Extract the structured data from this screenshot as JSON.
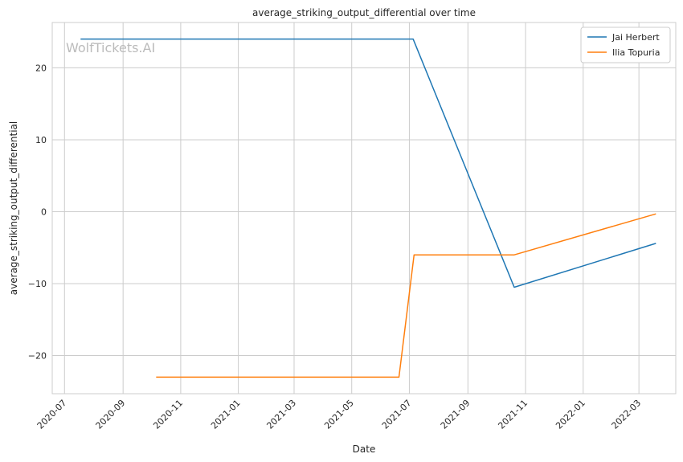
{
  "chart_data": {
    "type": "line",
    "title": "average_striking_output_differential over time",
    "xlabel": "Date",
    "ylabel": "average_striking_output_differential",
    "watermark": "WolfTickets.AI",
    "x_ticks": [
      "2020-07",
      "2020-09",
      "2020-11",
      "2021-01",
      "2021-03",
      "2021-05",
      "2021-07",
      "2021-09",
      "2021-11",
      "2022-01",
      "2022-03"
    ],
    "y_ticks": [
      20,
      10,
      0,
      -10,
      -20
    ],
    "y_tick_labels": [
      "20",
      "10",
      "0",
      "−10",
      "−20"
    ],
    "xlim": [
      "2020-06-18",
      "2022-04-09"
    ],
    "ylim": [
      -25.3,
      26.3
    ],
    "grid": true,
    "legend_position": "top-right",
    "series": [
      {
        "name": "Jai Herbert",
        "color": "#1f77b4",
        "points": [
          {
            "x": "2020-07-18",
            "y": 24
          },
          {
            "x": "2021-07-05",
            "y": 24
          },
          {
            "x": "2021-10-20",
            "y": -10.5
          },
          {
            "x": "2022-03-19",
            "y": -4.4
          }
        ]
      },
      {
        "name": "Ilia Topuria",
        "color": "#ff7f0e",
        "points": [
          {
            "x": "2020-10-06",
            "y": -23
          },
          {
            "x": "2021-06-20",
            "y": -23
          },
          {
            "x": "2021-07-06",
            "y": -6
          },
          {
            "x": "2021-10-20",
            "y": -6
          },
          {
            "x": "2022-03-19",
            "y": -0.3
          }
        ]
      }
    ]
  }
}
